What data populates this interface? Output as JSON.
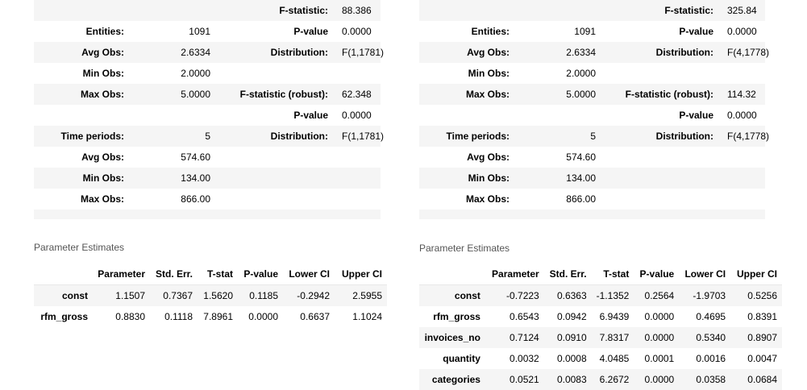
{
  "left": {
    "stats_rows": [
      [
        "",
        "",
        "F-statistic:",
        "88.386"
      ],
      [
        "Entities:",
        "1091",
        "P-value",
        "0.0000"
      ],
      [
        "Avg Obs:",
        "2.6334",
        "Distribution:",
        "F(1,1781)"
      ],
      [
        "Min Obs:",
        "2.0000",
        "",
        ""
      ],
      [
        "Max Obs:",
        "5.0000",
        "F-statistic (robust):",
        "62.348"
      ],
      [
        "",
        "",
        "P-value",
        "0.0000"
      ],
      [
        "Time periods:",
        "5",
        "Distribution:",
        "F(1,1781)"
      ],
      [
        "Avg Obs:",
        "574.60",
        "",
        ""
      ],
      [
        "Min Obs:",
        "134.00",
        "",
        ""
      ],
      [
        "Max Obs:",
        "866.00",
        "",
        ""
      ]
    ],
    "caption": "Parameter Estimates",
    "columns": [
      "",
      "Parameter",
      "Std. Err.",
      "T-stat",
      "P-value",
      "Lower CI",
      "Upper CI"
    ],
    "rows": [
      [
        "const",
        "1.1507",
        "0.7367",
        "1.5620",
        "0.1185",
        "-0.2942",
        "2.5955"
      ],
      [
        "rfm_gross",
        "0.8830",
        "0.1118",
        "7.8961",
        "0.0000",
        "0.6637",
        "1.1024"
      ]
    ]
  },
  "right": {
    "stats_rows": [
      [
        "",
        "",
        "F-statistic:",
        "325.84"
      ],
      [
        "Entities:",
        "1091",
        "P-value",
        "0.0000"
      ],
      [
        "Avg Obs:",
        "2.6334",
        "Distribution:",
        "F(4,1778)"
      ],
      [
        "Min Obs:",
        "2.0000",
        "",
        ""
      ],
      [
        "Max Obs:",
        "5.0000",
        "F-statistic (robust):",
        "114.32"
      ],
      [
        "",
        "",
        "P-value",
        "0.0000"
      ],
      [
        "Time periods:",
        "5",
        "Distribution:",
        "F(4,1778)"
      ],
      [
        "Avg Obs:",
        "574.60",
        "",
        ""
      ],
      [
        "Min Obs:",
        "134.00",
        "",
        ""
      ],
      [
        "Max Obs:",
        "866.00",
        "",
        ""
      ]
    ],
    "caption": "Parameter Estimates",
    "columns": [
      "",
      "Parameter",
      "Std. Err.",
      "T-stat",
      "P-value",
      "Lower CI",
      "Upper CI"
    ],
    "rows": [
      [
        "const",
        "-0.7223",
        "0.6363",
        "-1.1352",
        "0.2564",
        "-1.9703",
        "0.5256"
      ],
      [
        "rfm_gross",
        "0.6543",
        "0.0942",
        "6.9439",
        "0.0000",
        "0.4695",
        "0.8391"
      ],
      [
        "invoices_no",
        "0.7124",
        "0.0910",
        "7.8317",
        "0.0000",
        "0.5340",
        "0.8907"
      ],
      [
        "quantity",
        "0.0032",
        "0.0008",
        "4.0485",
        "0.0001",
        "0.0016",
        "0.0047"
      ],
      [
        "categories",
        "0.0521",
        "0.0083",
        "6.2672",
        "0.0000",
        "0.0358",
        "0.0684"
      ]
    ]
  }
}
